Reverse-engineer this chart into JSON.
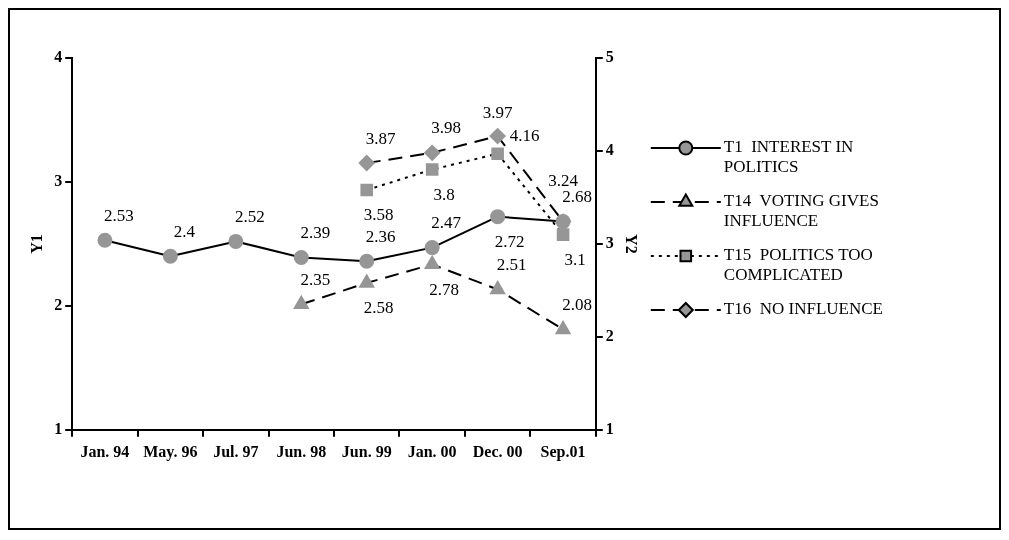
{
  "chart_data": {
    "type": "line",
    "categories": [
      "Jan. 94",
      "May. 96",
      "Jul. 97",
      "Jun. 98",
      "Jun. 99",
      "Jan. 00",
      "Dec. 00",
      "Sep.01"
    ],
    "ylabel": "Y1",
    "y2label": "Y2",
    "ylim": [
      1,
      4
    ],
    "yticks": [
      1,
      2,
      3,
      4
    ],
    "y2lim": [
      1,
      5
    ],
    "y2ticks": [
      1,
      2,
      3,
      4,
      5
    ],
    "series": [
      {
        "name": "T1  INTEREST IN POLITICS",
        "color": "#969696",
        "marker": "circle",
        "line_style": "solid",
        "values": [
          2.53,
          2.4,
          2.52,
          2.39,
          2.36,
          2.47,
          2.72,
          2.68
        ]
      },
      {
        "name": "T14  VOTING GIVES INFLUENCE",
        "color": "#969696",
        "marker": "triangle",
        "line_style": "dashed",
        "axis": "y2",
        "values": [
          null,
          null,
          null,
          2.35,
          2.58,
          2.78,
          2.51,
          2.08
        ]
      },
      {
        "name": "T15  POLITICS TOO COMPLICATED",
        "color": "#969696",
        "marker": "square",
        "line_style": "dotted",
        "axis": "y2",
        "values": [
          null,
          null,
          null,
          null,
          3.58,
          3.8,
          3.97,
          3.1
        ]
      },
      {
        "name": "T16  NO INFLUENCE",
        "color": "#969696",
        "marker": "diamond",
        "line_style": "dashed",
        "axis": "y2",
        "values": [
          null,
          null,
          null,
          null,
          3.87,
          3.98,
          4.16,
          3.24
        ]
      }
    ],
    "data_labels": true,
    "grid": false,
    "legend": "right"
  }
}
